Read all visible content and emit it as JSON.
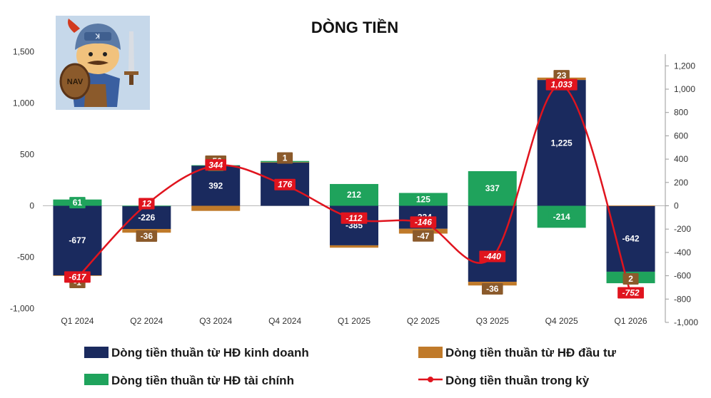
{
  "chart_data": {
    "type": "bar",
    "title": "DÒNG TIỀN",
    "categories": [
      "Q1 2024",
      "Q2 2024",
      "Q3 2024",
      "Q4 2024",
      "Q1 2025",
      "Q2 2025",
      "Q3 2025",
      "Q4 2025",
      "Q1 2026"
    ],
    "series": [
      {
        "name": "Dòng tiền thuần từ HĐ kinh doanh",
        "type": "stacked-bar",
        "axis": "left",
        "color": "#1a2a5e",
        "values": [
          -677,
          -226,
          392,
          424,
          -385,
          -224,
          -740,
          1225,
          -642
        ]
      },
      {
        "name": "Dòng tiền thuần từ HĐ đầu tư",
        "type": "stacked-bar",
        "axis": "left",
        "color": "#c07a2a",
        "values": [
          -1,
          -36,
          -50,
          1,
          -23,
          -47,
          -36,
          23,
          2
        ]
      },
      {
        "name": "Dòng tiền thuần từ HĐ tài chính",
        "type": "stacked-bar",
        "axis": "left",
        "color": "#1fa35c",
        "values": [
          61,
          1,
          3,
          11,
          212,
          125,
          337,
          -214,
          -112
        ]
      },
      {
        "name": "Dòng tiền thuần trong kỳ",
        "type": "line",
        "axis": "right",
        "color": "#e0141e",
        "values": [
          -617,
          12,
          344,
          176,
          -112,
          -146,
          -440,
          1033,
          -752
        ]
      }
    ],
    "data_labels": {
      "operating": [
        "-677",
        "-226",
        "392",
        "424",
        "-385",
        "-224",
        "",
        "1,225",
        "-642"
      ],
      "investing": [
        "-1",
        "-36",
        "-50",
        "1",
        "",
        "-47",
        "-36",
        "23",
        "2"
      ],
      "financing": [
        "61",
        "",
        "3",
        "",
        "212",
        "125",
        "337",
        "-214",
        ""
      ],
      "net": [
        "-617",
        "12",
        "344",
        "176",
        "-112",
        "-146",
        "-440",
        "1,033",
        "-752"
      ]
    },
    "y_left": {
      "min": -1000,
      "max": 1800,
      "ticks": [
        -1000,
        -500,
        0,
        500,
        1000,
        1500
      ],
      "tick_labels": [
        "-1,000",
        "-500",
        "0",
        "500",
        "1,000",
        "1,500"
      ]
    },
    "y_right": {
      "min": -1000,
      "max": 1300,
      "ticks": [
        -1000,
        -800,
        -600,
        -400,
        -200,
        0,
        200,
        400,
        600,
        800,
        1000,
        1200
      ],
      "tick_labels": [
        "-1,000",
        "-800",
        "-600",
        "-400",
        "-200",
        "0",
        "200",
        "400",
        "600",
        "800",
        "1,000",
        "1,200"
      ]
    },
    "grid": false,
    "legend_placement": "bottom",
    "mascot_badge": "NAV"
  }
}
